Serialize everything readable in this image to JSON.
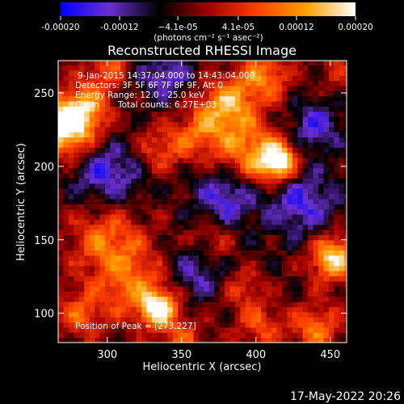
{
  "colorbar": {
    "tick_labels": [
      "-0.00020",
      "-0.00012",
      "−4.1e-05",
      "4.1e-05",
      "0.00012",
      "0.00020"
    ],
    "tick_values": [
      -0.0002,
      -0.00012,
      -4.1e-05,
      4.1e-05,
      0.00012,
      0.0002
    ],
    "range": [
      -0.0002,
      0.0002
    ],
    "units_label": "(photons cm⁻² s⁻¹ asec⁻²)",
    "colors": [
      "#0000ff",
      "#6a2fd0",
      "#000000",
      "#a00000",
      "#ff4000",
      "#ffa000",
      "#ffffff"
    ]
  },
  "chart_data": {
    "type": "heatmap",
    "title": "Reconstructed RHESSI Image",
    "xlabel": "Heliocentric X (arcsec)",
    "ylabel": "Heliocentric Y (arcsec)",
    "xlim": [
      267,
      461
    ],
    "ylim": [
      80,
      272
    ],
    "x_ticks": [
      300,
      350,
      400,
      450
    ],
    "y_ticks": [
      100,
      150,
      200,
      250
    ],
    "annotations": [
      "9-Jan-2015 14:37:04.000 to 14:43:04.000",
      "Detectors: 3F 5F 6F 7F 8F 9F, Att 0",
      "Energy Range: 12.0 - 25.0 keV",
      "Clean",
      "Total counts: 6.27E+03"
    ],
    "peak_label": "Position of Peak = [273,227]",
    "peak_position": [
      273,
      227
    ],
    "blobs": [
      {
        "x": 272,
        "y": 227,
        "sigma": 14,
        "amp": 2.2
      },
      {
        "x": 285,
        "y": 240,
        "sigma": 12,
        "amp": 1.2
      },
      {
        "x": 415,
        "y": 203,
        "sigma": 9,
        "amp": 2.3
      },
      {
        "x": 395,
        "y": 210,
        "sigma": 16,
        "amp": 1.4
      },
      {
        "x": 380,
        "y": 242,
        "sigma": 13,
        "amp": 1.6
      },
      {
        "x": 405,
        "y": 262,
        "sigma": 12,
        "amp": 1.3
      },
      {
        "x": 360,
        "y": 222,
        "sigma": 12,
        "amp": 1.0
      },
      {
        "x": 335,
        "y": 212,
        "sigma": 11,
        "amp": 0.9
      },
      {
        "x": 335,
        "y": 103,
        "sigma": 9,
        "amp": 2.0
      },
      {
        "x": 318,
        "y": 118,
        "sigma": 16,
        "amp": 1.1
      },
      {
        "x": 300,
        "y": 150,
        "sigma": 18,
        "amp": 1.2
      },
      {
        "x": 282,
        "y": 100,
        "sigma": 12,
        "amp": 1.0
      },
      {
        "x": 452,
        "y": 138,
        "sigma": 11,
        "amp": 2.0
      },
      {
        "x": 440,
        "y": 90,
        "sigma": 12,
        "amp": 1.2
      },
      {
        "x": 402,
        "y": 92,
        "sigma": 11,
        "amp": 1.0
      },
      {
        "x": 370,
        "y": 150,
        "sigma": 10,
        "amp": 0.7
      },
      {
        "x": 392,
        "y": 118,
        "sigma": 9,
        "amp": 0.8
      },
      {
        "x": 352,
        "y": 82,
        "sigma": 10,
        "amp": 0.9
      },
      {
        "x": 300,
        "y": 268,
        "sigma": 10,
        "amp": 1.0
      },
      {
        "x": 455,
        "y": 265,
        "sigma": 10,
        "amp": 0.6
      },
      {
        "x": 380,
        "y": 180,
        "sigma": 14,
        "amp": -1.2
      },
      {
        "x": 430,
        "y": 175,
        "sigma": 16,
        "amp": -1.1
      },
      {
        "x": 300,
        "y": 195,
        "sigma": 16,
        "amp": -1.1
      },
      {
        "x": 440,
        "y": 228,
        "sigma": 12,
        "amp": -1.0
      },
      {
        "x": 340,
        "y": 262,
        "sigma": 12,
        "amp": -1.0
      },
      {
        "x": 360,
        "y": 128,
        "sigma": 12,
        "amp": -0.9
      }
    ]
  },
  "timestamp": "17-May-2022 20:26"
}
